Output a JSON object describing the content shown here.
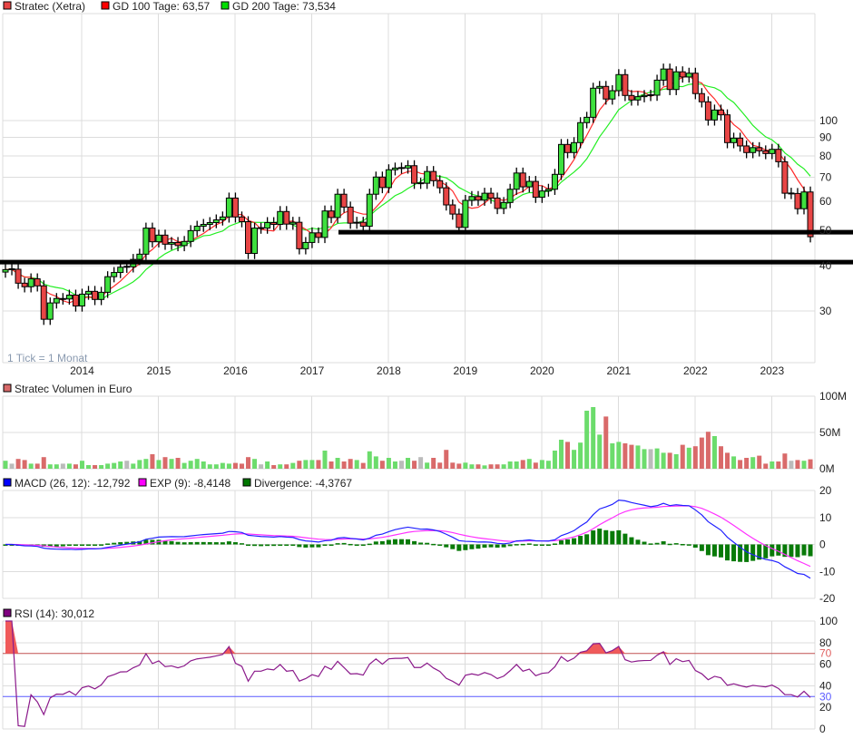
{
  "legend": {
    "price": {
      "label": "Stratec (Xetra)",
      "color": "#e84545"
    },
    "ma100": {
      "label": "GD 100 Tage: 63,57",
      "color": "#ff0000"
    },
    "ma200": {
      "label": "GD 200 Tage: 73,534",
      "color": "#00dd00"
    },
    "volume": {
      "label": "Stratec Volumen in Euro",
      "color": "#d96a6a"
    },
    "macd": {
      "label": "MACD (26, 12): -12,792",
      "color": "#0000ff"
    },
    "exp": {
      "label": "EXP (9): -8,4148",
      "color": "#ff00ff"
    },
    "divergence": {
      "label": "Divergence: -4,3767",
      "color": "#007700"
    },
    "rsi": {
      "label": "RSI (14): 30,012",
      "color": "#800080"
    }
  },
  "tick_note": "1 Tick = 1 Monat",
  "chart_data": {
    "type": "candlestick",
    "title": "Stratec (Xetra)",
    "interval": "monthly",
    "year_labels": [
      "2014",
      "2015",
      "2016",
      "2017",
      "2018",
      "2019",
      "2020",
      "2021",
      "2022",
      "2023"
    ],
    "price_ticks": [
      100,
      90,
      80,
      70,
      60,
      50,
      40,
      30
    ],
    "price_scale": "log",
    "first_open": 38.4,
    "closes": [
      39.0,
      39.1,
      35.8,
      35.0,
      36.8,
      35.2,
      28.5,
      31.6,
      32.5,
      32.4,
      33.2,
      31.0,
      33.4,
      34.0,
      32.3,
      33.8,
      37.3,
      38.3,
      39.6,
      39.7,
      41.6,
      43.0,
      50.7,
      46.5,
      48.5,
      45.8,
      46.3,
      45.4,
      46.6,
      49.9,
      51.3,
      51.9,
      52.5,
      53.4,
      54.4,
      61.3,
      54.4,
      52.8,
      43.2,
      50.7,
      50.7,
      52.5,
      51.9,
      56.3,
      52.0,
      52.6,
      44.5,
      46.3,
      49.2,
      47.8,
      56.5,
      54.2,
      62.8,
      57.9,
      52.3,
      52.6,
      51.3,
      62.8,
      70.0,
      65.5,
      73.3,
      74.1,
      74.1,
      75.2,
      67.3,
      67.3,
      72.5,
      68.4,
      65.4,
      58.7,
      55.4,
      50.9,
      60.4,
      61.9,
      60.5,
      63.2,
      61.3,
      57.4,
      59.6,
      64.8,
      71.8,
      65.8,
      68.1,
      61.6,
      64.1,
      64.8,
      71.2,
      86.0,
      81.7,
      87.0,
      98.7,
      102.1,
      122.7,
      124.1,
      114.6,
      120.8,
      133.7,
      117.2,
      113.9,
      116.3,
      117.2,
      117.4,
      129.1,
      138.5,
      121.7,
      136.1,
      131.7,
      134.9,
      118.6,
      112.6,
      100.4,
      106.9,
      103.7,
      87.0,
      89.5,
      85.2,
      81.7,
      84.3,
      82.6,
      81.2,
      83.4,
      77.1,
      63.2,
      63.1,
      57.3,
      63.7,
      48.0
    ],
    "ma_periods_months": {
      "ma100": 5,
      "ma200": 10
    },
    "support_levels": [
      49.4,
      40.9
    ],
    "volume_ticks": [
      "100M",
      "50M",
      "0M"
    ],
    "volume_max_m": 100,
    "volumes_m": [
      11,
      7,
      13.5,
      12,
      7,
      7,
      16,
      6,
      6,
      7,
      7,
      6,
      11,
      5,
      5,
      5,
      7,
      8,
      10,
      11,
      7,
      12,
      13.5,
      20,
      12,
      16,
      13.5,
      15,
      8,
      11,
      13.5,
      10,
      6,
      6,
      8,
      7,
      8,
      7,
      16,
      13.5,
      6,
      10,
      5,
      6,
      6,
      8,
      11,
      12,
      12,
      12,
      25,
      10,
      15,
      10,
      13.5,
      12,
      8,
      24,
      17,
      11,
      15,
      10,
      11,
      15,
      11,
      16,
      8.4,
      15,
      8.4,
      26,
      8.4,
      7,
      8.4,
      6,
      6,
      4.6,
      6,
      6,
      6,
      10,
      10,
      12,
      13.5,
      8.4,
      12,
      11,
      25,
      40,
      37,
      26,
      36,
      80,
      85,
      47,
      72,
      35,
      37,
      35,
      33,
      32,
      27,
      27,
      28,
      22,
      22,
      20,
      33,
      29,
      31,
      43,
      51,
      45,
      31,
      22,
      17,
      12,
      15,
      16,
      18,
      7,
      10,
      10,
      21,
      11,
      12,
      11,
      13
    ],
    "macd_ticks": [
      20,
      10,
      0,
      -10,
      -20
    ],
    "macd_params": {
      "fast": 12,
      "slow": 26,
      "signal": 9
    },
    "rsi_period": 14,
    "rsi_ticks": [
      100,
      80,
      70,
      60,
      40,
      30,
      20,
      0
    ],
    "rsi_levels": {
      "overbought": 70,
      "oversold": 30
    },
    "colors": {
      "up": "#3ee03e",
      "down": "#e84545",
      "neutral": "#bbbbbb",
      "vol_up": "#6cdc6c",
      "vol_down": "#d96a6a",
      "hist": "#087a08",
      "rsi_fill": "#f05a5a",
      "ob": "#e06060",
      "os": "#5a5aff"
    }
  }
}
